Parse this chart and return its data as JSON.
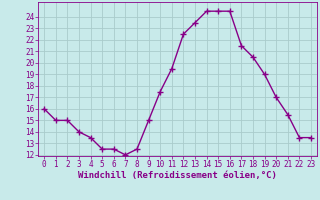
{
  "x": [
    0,
    1,
    2,
    3,
    4,
    5,
    6,
    7,
    8,
    9,
    10,
    11,
    12,
    13,
    14,
    15,
    16,
    17,
    18,
    19,
    20,
    21,
    22,
    23
  ],
  "y": [
    16,
    15,
    15,
    14,
    13.5,
    12.5,
    12.5,
    12,
    12.5,
    15,
    17.5,
    19.5,
    22.5,
    23.5,
    24.5,
    24.5,
    24.5,
    21.5,
    20.5,
    19,
    17,
    15.5,
    13.5,
    13.5
  ],
  "line_color": "#880088",
  "marker": "+",
  "marker_size": 4,
  "line_width": 1.0,
  "bg_color": "#c8eaea",
  "grid_color": "#aacccc",
  "xlabel": "Windchill (Refroidissement éolien,°C)",
  "xlabel_color": "#880088",
  "xlabel_fontsize": 6.5,
  "tick_color": "#880088",
  "tick_fontsize": 5.5,
  "ylim": [
    12,
    25
  ],
  "xlim": [
    -0.5,
    23.5
  ],
  "yticks": [
    12,
    13,
    14,
    15,
    16,
    17,
    18,
    19,
    20,
    21,
    22,
    23,
    24
  ],
  "xticks": [
    0,
    1,
    2,
    3,
    4,
    5,
    6,
    7,
    8,
    9,
    10,
    11,
    12,
    13,
    14,
    15,
    16,
    17,
    18,
    19,
    20,
    21,
    22,
    23
  ]
}
